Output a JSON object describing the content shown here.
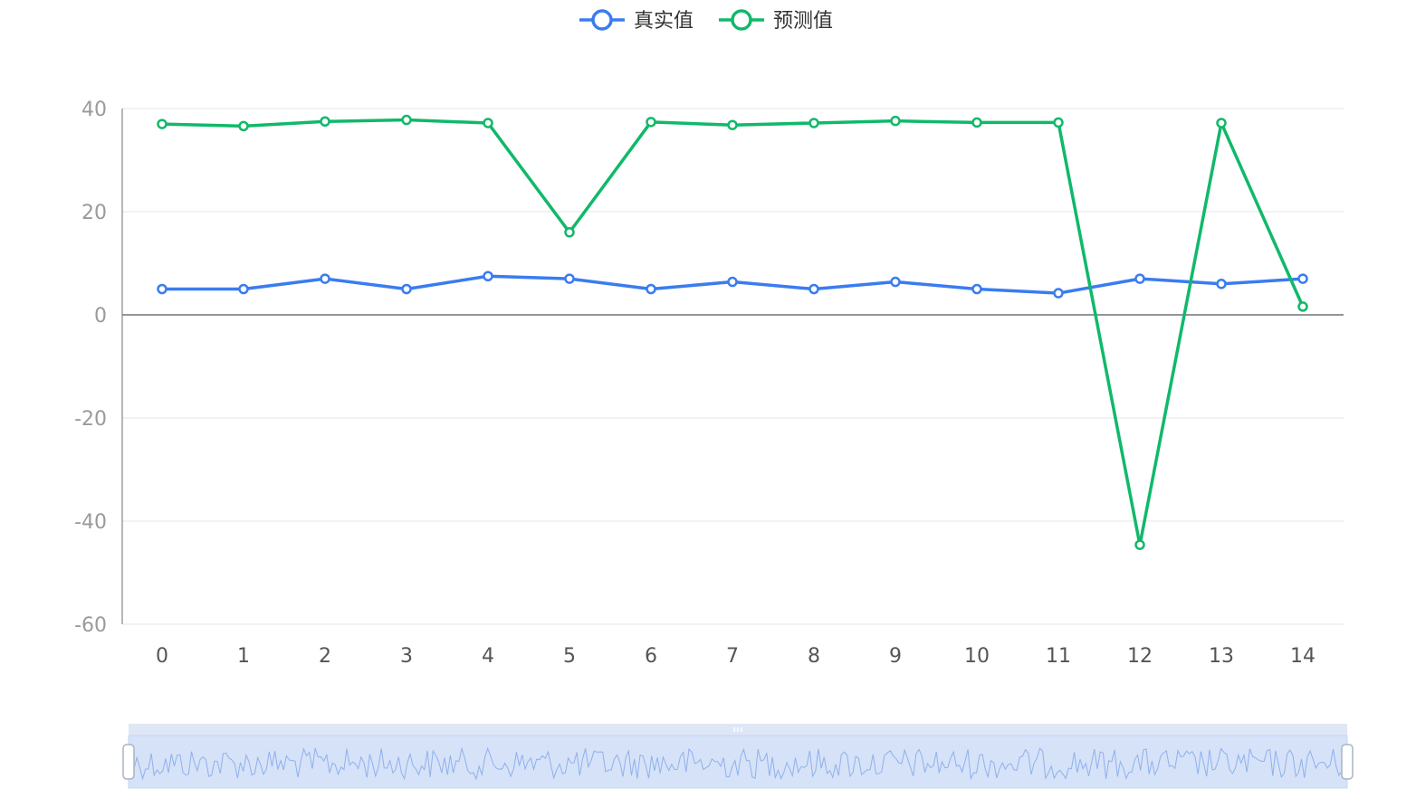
{
  "chart_data": {
    "type": "line",
    "categories": [
      "0",
      "1",
      "2",
      "3",
      "4",
      "5",
      "6",
      "7",
      "8",
      "9",
      "10",
      "11",
      "12",
      "13",
      "14"
    ],
    "series": [
      {
        "name": "真实值",
        "color": "#3a7cf0",
        "values": [
          5.0,
          5.0,
          7.0,
          5.0,
          7.5,
          7.0,
          5.0,
          6.4,
          5.0,
          6.4,
          5.0,
          4.2,
          7.0,
          6.0,
          7.0
        ]
      },
      {
        "name": "预测值",
        "color": "#10b96a",
        "values": [
          37.0,
          36.6,
          37.5,
          37.8,
          37.2,
          16.0,
          37.4,
          36.8,
          37.2,
          37.6,
          37.3,
          37.3,
          -44.6,
          37.2,
          1.6
        ]
      }
    ],
    "ylim": [
      -60,
      40
    ],
    "yticks": [
      -60,
      -40,
      -20,
      0,
      20,
      40
    ],
    "grid": true,
    "legend_position": "top-center",
    "zoom_slider": {
      "visible": true,
      "start_percent": 0,
      "end_percent": 100,
      "fill_color": "#d6e2f7",
      "line_color": "#8fb0ee"
    }
  }
}
